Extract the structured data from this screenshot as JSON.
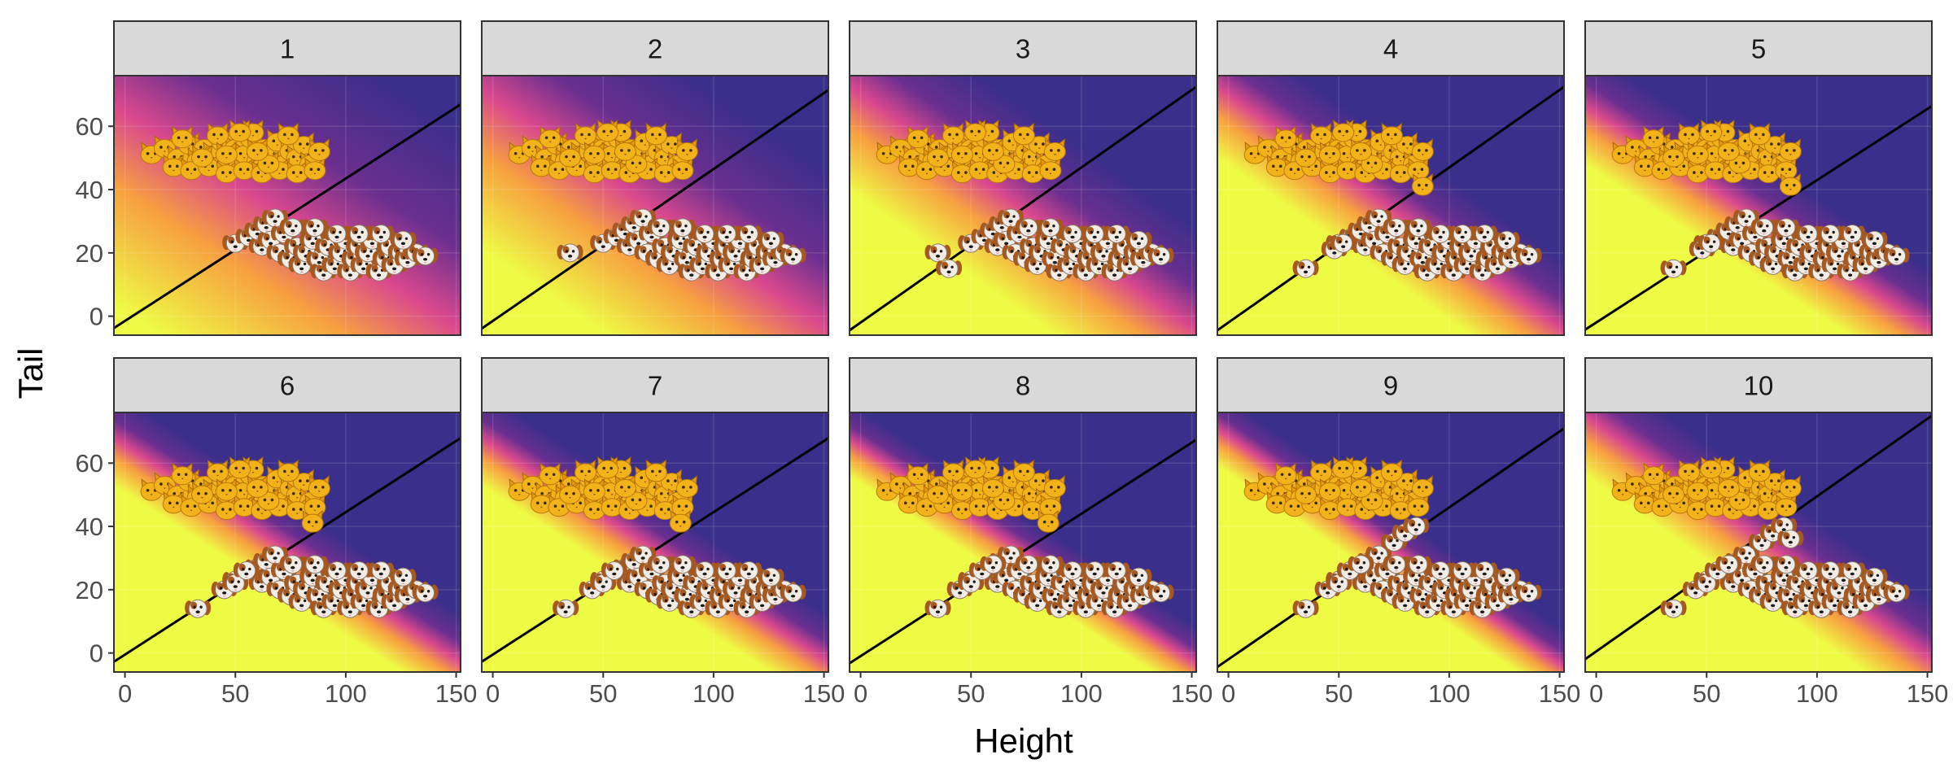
{
  "chart_data": {
    "type": "scatter",
    "layout": "faceted small multiples, 2 rows x 5 columns",
    "xlabel": "Height",
    "ylabel": "Tail",
    "xlim": [
      -5,
      152
    ],
    "ylim": [
      -6,
      76
    ],
    "x_ticks": [
      0,
      50,
      100,
      150
    ],
    "y_ticks": [
      0,
      20,
      40,
      60
    ],
    "grid": true,
    "legend": "none",
    "colors": {
      "region_low": "#3a2f8a",
      "region_high": "#eefb45",
      "transition": "#d9488e",
      "boundary": "#000000",
      "strip_fill": "#d9d9d9",
      "cat_marker": "#f2b21a",
      "dog_marker": "#f2ece6",
      "dog_marker_patch": "#a8571d"
    },
    "marker_icons": [
      "cat-face-icon",
      "dog-face-icon"
    ],
    "panels": [
      {
        "label": "1",
        "boundary": {
          "intercept": -1.5,
          "slope": 0.45
        },
        "transition_spread": 18
      },
      {
        "label": "2",
        "boundary": {
          "intercept": -1.5,
          "slope": 0.48
        },
        "transition_spread": 14
      },
      {
        "label": "3",
        "boundary": {
          "intercept": -2.0,
          "slope": 0.49
        },
        "transition_spread": 9
      },
      {
        "label": "4",
        "boundary": {
          "intercept": -2.0,
          "slope": 0.49
        },
        "transition_spread": 6
      },
      {
        "label": "5",
        "boundary": {
          "intercept": -2.0,
          "slope": 0.45
        },
        "transition_spread": 5
      },
      {
        "label": "6",
        "boundary": {
          "intercept": -0.5,
          "slope": 0.45
        },
        "transition_spread": 4
      },
      {
        "label": "7",
        "boundary": {
          "intercept": -0.5,
          "slope": 0.45
        },
        "transition_spread": 4
      },
      {
        "label": "8",
        "boundary": {
          "intercept": -1.0,
          "slope": 0.45
        },
        "transition_spread": 3
      },
      {
        "label": "9",
        "boundary": {
          "intercept": -2.0,
          "slope": 0.48
        },
        "transition_spread": 3
      },
      {
        "label": "10",
        "boundary": {
          "intercept": 0.5,
          "slope": 0.49
        },
        "transition_spread": 5
      }
    ],
    "series": [
      {
        "marker": "cat-face-icon",
        "points": [
          [
            12,
            51
          ],
          [
            18,
            53
          ],
          [
            24,
            50
          ],
          [
            29,
            54
          ],
          [
            33,
            49
          ],
          [
            36,
            53
          ],
          [
            40,
            51
          ],
          [
            44,
            55
          ],
          [
            47,
            49
          ],
          [
            50,
            53
          ],
          [
            54,
            51
          ],
          [
            57,
            56
          ],
          [
            60,
            49
          ],
          [
            63,
            53
          ],
          [
            66,
            51
          ],
          [
            69,
            55
          ],
          [
            72,
            48
          ],
          [
            75,
            52
          ],
          [
            78,
            50
          ],
          [
            81,
            54
          ],
          [
            84,
            48
          ],
          [
            22,
            47
          ],
          [
            30,
            46
          ],
          [
            38,
            47
          ],
          [
            46,
            45
          ],
          [
            54,
            46
          ],
          [
            62,
            45
          ],
          [
            70,
            46
          ],
          [
            78,
            45
          ],
          [
            26,
            56
          ],
          [
            42,
            57
          ],
          [
            58,
            58
          ],
          [
            74,
            57
          ],
          [
            35,
            50
          ],
          [
            65,
            48
          ],
          [
            52,
            58
          ],
          [
            46,
            51
          ],
          [
            60,
            52
          ],
          [
            86,
            46
          ],
          [
            88,
            52
          ]
        ]
      },
      {
        "marker": "dog-face-icon",
        "points": [
          [
            50,
            23
          ],
          [
            56,
            25
          ],
          [
            60,
            27
          ],
          [
            64,
            29
          ],
          [
            68,
            31
          ],
          [
            62,
            22
          ],
          [
            66,
            24
          ],
          [
            70,
            20
          ],
          [
            72,
            26
          ],
          [
            75,
            18
          ],
          [
            78,
            22
          ],
          [
            80,
            16
          ],
          [
            82,
            20
          ],
          [
            85,
            24
          ],
          [
            88,
            18
          ],
          [
            90,
            14
          ],
          [
            92,
            22
          ],
          [
            95,
            16
          ],
          [
            98,
            20
          ],
          [
            100,
            24
          ],
          [
            102,
            14
          ],
          [
            104,
            18
          ],
          [
            106,
            22
          ],
          [
            108,
            16
          ],
          [
            110,
            20
          ],
          [
            112,
            24
          ],
          [
            115,
            14
          ],
          [
            118,
            18
          ],
          [
            120,
            22
          ],
          [
            122,
            16
          ],
          [
            125,
            20
          ],
          [
            128,
            18
          ],
          [
            132,
            20
          ],
          [
            136,
            19
          ],
          [
            76,
            28
          ],
          [
            86,
            28
          ],
          [
            96,
            26
          ],
          [
            106,
            26
          ],
          [
            116,
            26
          ],
          [
            126,
            24
          ]
        ]
      }
    ],
    "panel_extra_points": [
      {
        "cats": [],
        "dogs": []
      },
      {
        "cats": [],
        "dogs": [
          [
            35,
            20
          ]
        ]
      },
      {
        "cats": [],
        "dogs": [
          [
            35,
            20
          ],
          [
            40,
            15
          ]
        ]
      },
      {
        "cats": [
          [
            88,
            41
          ]
        ],
        "dogs": [
          [
            35,
            15
          ],
          [
            48,
            21
          ],
          [
            52,
            23
          ]
        ]
      },
      {
        "cats": [
          [
            88,
            41
          ]
        ],
        "dogs": [
          [
            35,
            15
          ],
          [
            48,
            21
          ],
          [
            52,
            23
          ]
        ]
      },
      {
        "cats": [
          [
            85,
            41
          ]
        ],
        "dogs": [
          [
            33,
            14
          ],
          [
            45,
            20
          ],
          [
            50,
            22
          ],
          [
            55,
            26
          ]
        ]
      },
      {
        "cats": [
          [
            85,
            41
          ]
        ],
        "dogs": [
          [
            33,
            14
          ],
          [
            45,
            20
          ],
          [
            50,
            22
          ],
          [
            55,
            26
          ]
        ]
      },
      {
        "cats": [
          [
            85,
            41
          ]
        ],
        "dogs": [
          [
            35,
            14
          ],
          [
            45,
            20
          ],
          [
            50,
            22
          ],
          [
            55,
            26
          ],
          [
            60,
            28
          ]
        ]
      },
      {
        "cats": [],
        "dogs": [
          [
            35,
            14
          ],
          [
            45,
            20
          ],
          [
            50,
            22
          ],
          [
            55,
            26
          ],
          [
            60,
            28
          ],
          [
            75,
            35
          ],
          [
            80,
            38
          ],
          [
            85,
            40
          ]
        ]
      },
      {
        "cats": [],
        "dogs": [
          [
            35,
            14
          ],
          [
            45,
            20
          ],
          [
            50,
            22
          ],
          [
            55,
            26
          ],
          [
            60,
            28
          ],
          [
            75,
            35
          ],
          [
            80,
            38
          ],
          [
            85,
            40
          ],
          [
            88,
            36
          ]
        ]
      }
    ]
  }
}
